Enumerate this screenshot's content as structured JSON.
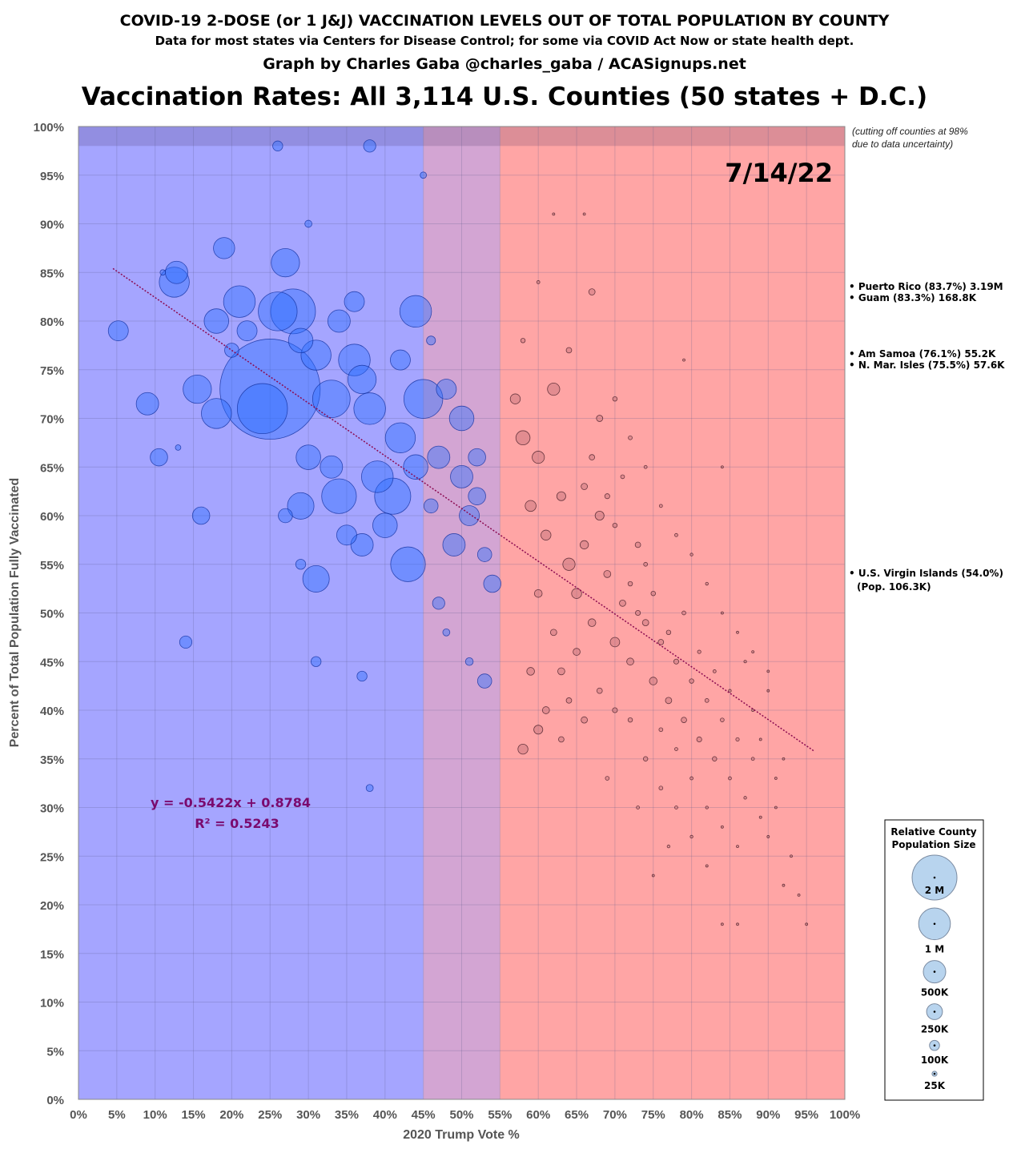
{
  "header": {
    "title": "COVID-19 2-DOSE (or 1 J&J) VACCINATION LEVELS OUT OF TOTAL POPULATION BY COUNTY",
    "subtitle": "Data for most states via Centers for Disease Control; for some via COVID Act Now or state health dept.",
    "credit": "Graph by Charles Gaba @charles_gaba / ACASignups.net",
    "main_title": "Vaccination Rates: All 3,114 U.S. Counties (50 states + D.C.)"
  },
  "chart_data": {
    "type": "scatter",
    "title": "Vaccination Rates: All 3,114 U.S. Counties (50 states + D.C.)",
    "date": "7/14/22",
    "xlabel": "2020 Trump Vote %",
    "ylabel": "Percent of Total Population Fully Vaccinated",
    "xlim": [
      0,
      100
    ],
    "ylim": [
      0,
      100
    ],
    "grid": true,
    "x_ticks": [
      "0%",
      "5%",
      "10%",
      "15%",
      "20%",
      "25%",
      "30%",
      "35%",
      "40%",
      "45%",
      "50%",
      "55%",
      "60%",
      "65%",
      "70%",
      "75%",
      "80%",
      "85%",
      "90%",
      "95%",
      "100%"
    ],
    "y_ticks": [
      "0%",
      "5%",
      "10%",
      "15%",
      "20%",
      "25%",
      "30%",
      "35%",
      "40%",
      "45%",
      "50%",
      "55%",
      "60%",
      "65%",
      "70%",
      "75%",
      "80%",
      "85%",
      "90%",
      "95%",
      "100%"
    ],
    "regions": [
      {
        "name": "blue",
        "from": 0,
        "to": 45,
        "color": "#a5a5ff"
      },
      {
        "name": "purple",
        "from": 45,
        "to": 55,
        "color": "#d3a5d3"
      },
      {
        "name": "red",
        "from": 55,
        "to": 100,
        "color": "#ffa5a5"
      }
    ],
    "cutoff_band": {
      "from": 98,
      "to": 100,
      "note_lines": [
        "(cutting off counties at 98%",
        "due to data uncertainty)"
      ]
    },
    "regression": {
      "slope": -0.5422,
      "intercept": 0.8784,
      "x_range": [
        4.5,
        96
      ],
      "equation": "y = -0.5422x + 0.8784",
      "r2": "R² = 0.5243",
      "color": "#8b0a50"
    },
    "point_fields": [
      "trump_vote_pct",
      "vaccinated_pct",
      "population_K"
    ],
    "points": [
      [
        5.2,
        79,
        400
      ],
      [
        9,
        71.5,
        500
      ],
      [
        10.5,
        66,
        300
      ],
      [
        12.5,
        84,
        900
      ],
      [
        12.8,
        85,
        500
      ],
      [
        15.5,
        73,
        800
      ],
      [
        18,
        70.5,
        900
      ],
      [
        19,
        87.5,
        450
      ],
      [
        21,
        82,
        1000
      ],
      [
        25,
        73,
        10000
      ],
      [
        24,
        71,
        2500
      ],
      [
        27,
        86,
        800
      ],
      [
        28,
        81,
        2000
      ],
      [
        26,
        81,
        1500
      ],
      [
        29,
        78,
        600
      ],
      [
        31,
        76.5,
        900
      ],
      [
        33,
        72,
        1400
      ],
      [
        30,
        66,
        600
      ],
      [
        34,
        62,
        1200
      ],
      [
        29,
        61,
        700
      ],
      [
        31,
        53.5,
        700
      ],
      [
        36,
        76,
        1000
      ],
      [
        37,
        74,
        800
      ],
      [
        38,
        71,
        1000
      ],
      [
        39,
        64,
        1000
      ],
      [
        41,
        62,
        1300
      ],
      [
        42,
        68,
        900
      ],
      [
        44,
        81,
        1000
      ],
      [
        43,
        55,
        1200
      ],
      [
        40,
        59,
        600
      ],
      [
        33,
        65,
        500
      ],
      [
        35,
        58,
        400
      ],
      [
        37,
        57,
        500
      ],
      [
        16,
        60,
        300
      ],
      [
        14,
        47,
        150
      ],
      [
        31,
        45,
        100
      ],
      [
        30,
        90,
        50
      ],
      [
        34,
        80,
        500
      ],
      [
        22,
        79,
        400
      ],
      [
        18,
        80,
        600
      ],
      [
        20,
        77,
        200
      ],
      [
        45,
        95,
        40
      ],
      [
        38,
        98,
        150
      ],
      [
        26,
        98,
        100
      ],
      [
        36,
        82,
        400
      ],
      [
        45,
        72,
        1500
      ],
      [
        42,
        76,
        400
      ],
      [
        47,
        66,
        500
      ],
      [
        44,
        65,
        600
      ],
      [
        37,
        43.5,
        100
      ],
      [
        38,
        32,
        50
      ],
      [
        13,
        67,
        30
      ],
      [
        11,
        85,
        30
      ],
      [
        29,
        55,
        100
      ],
      [
        27,
        60,
        200
      ],
      [
        46,
        78,
        80
      ],
      [
        50,
        70,
        600
      ],
      [
        48,
        73,
        400
      ],
      [
        52,
        66,
        300
      ],
      [
        51,
        60,
        400
      ],
      [
        49,
        57,
        500
      ],
      [
        53,
        56,
        200
      ],
      [
        54,
        53,
        300
      ],
      [
        46,
        61,
        200
      ],
      [
        47,
        51,
        150
      ],
      [
        48,
        48,
        50
      ],
      [
        51,
        45,
        60
      ],
      [
        53,
        43,
        200
      ],
      [
        50,
        64,
        500
      ],
      [
        52,
        62,
        300
      ],
      [
        57,
        72,
        100
      ],
      [
        58,
        68,
        200
      ],
      [
        60,
        66,
        150
      ],
      [
        62,
        73,
        150
      ],
      [
        59,
        61,
        120
      ],
      [
        61,
        58,
        100
      ],
      [
        63,
        62,
        80
      ],
      [
        64,
        55,
        150
      ],
      [
        66,
        57,
        70
      ],
      [
        65,
        52,
        100
      ],
      [
        67,
        49,
        60
      ],
      [
        68,
        60,
        80
      ],
      [
        69,
        54,
        50
      ],
      [
        70,
        47,
        90
      ],
      [
        71,
        51,
        40
      ],
      [
        72,
        45,
        50
      ],
      [
        73,
        57,
        30
      ],
      [
        74,
        49,
        40
      ],
      [
        75,
        43,
        60
      ],
      [
        76,
        47,
        30
      ],
      [
        77,
        41,
        40
      ],
      [
        78,
        45,
        25
      ],
      [
        79,
        39,
        30
      ],
      [
        80,
        43,
        20
      ],
      [
        81,
        37,
        25
      ],
      [
        82,
        41,
        15
      ],
      [
        83,
        35,
        20
      ],
      [
        84,
        39,
        15
      ],
      [
        85,
        33,
        10
      ],
      [
        86,
        37,
        12
      ],
      [
        87,
        31,
        8
      ],
      [
        88,
        35,
        10
      ],
      [
        89,
        29,
        6
      ],
      [
        90,
        27,
        5
      ],
      [
        91,
        33,
        5
      ],
      [
        92,
        22,
        3
      ],
      [
        93,
        25,
        4
      ],
      [
        95,
        18,
        3
      ],
      [
        60,
        52,
        60
      ],
      [
        62,
        48,
        40
      ],
      [
        63,
        44,
        50
      ],
      [
        64,
        41,
        30
      ],
      [
        66,
        63,
        40
      ],
      [
        67,
        66,
        30
      ],
      [
        69,
        62,
        25
      ],
      [
        70,
        59,
        20
      ],
      [
        71,
        64,
        15
      ],
      [
        72,
        53,
        20
      ],
      [
        73,
        50,
        25
      ],
      [
        74,
        55,
        15
      ],
      [
        75,
        52,
        20
      ],
      [
        76,
        38,
        15
      ],
      [
        77,
        48,
        20
      ],
      [
        78,
        36,
        10
      ],
      [
        79,
        50,
        15
      ],
      [
        80,
        33,
        10
      ],
      [
        81,
        46,
        12
      ],
      [
        82,
        30,
        8
      ],
      [
        83,
        44,
        10
      ],
      [
        84,
        28,
        6
      ],
      [
        85,
        42,
        8
      ],
      [
        86,
        26,
        5
      ],
      [
        87,
        45,
        7
      ],
      [
        88,
        40,
        6
      ],
      [
        89,
        37,
        5
      ],
      [
        90,
        42,
        4
      ],
      [
        91,
        30,
        4
      ],
      [
        92,
        35,
        3
      ],
      [
        94,
        21,
        2
      ],
      [
        58,
        36,
        100
      ],
      [
        60,
        38,
        80
      ],
      [
        59,
        44,
        60
      ],
      [
        61,
        40,
        50
      ],
      [
        63,
        37,
        30
      ],
      [
        65,
        46,
        50
      ],
      [
        68,
        42,
        30
      ],
      [
        70,
        40,
        25
      ],
      [
        72,
        39,
        20
      ],
      [
        74,
        35,
        20
      ],
      [
        76,
        32,
        15
      ],
      [
        78,
        30,
        10
      ],
      [
        80,
        27,
        8
      ],
      [
        82,
        24,
        6
      ],
      [
        84,
        18,
        5
      ],
      [
        86,
        18,
        4
      ],
      [
        75,
        23,
        3
      ],
      [
        67,
        83,
        40
      ],
      [
        60,
        84,
        10
      ],
      [
        62,
        91,
        5
      ],
      [
        66,
        91,
        5
      ],
      [
        58,
        78,
        20
      ],
      [
        64,
        77,
        30
      ],
      [
        68,
        70,
        40
      ],
      [
        70,
        72,
        20
      ],
      [
        72,
        68,
        15
      ],
      [
        74,
        65,
        10
      ],
      [
        76,
        61,
        10
      ],
      [
        78,
        58,
        10
      ],
      [
        80,
        56,
        8
      ],
      [
        82,
        53,
        8
      ],
      [
        84,
        50,
        6
      ],
      [
        86,
        48,
        5
      ],
      [
        88,
        46,
        4
      ],
      [
        90,
        44,
        4
      ],
      [
        79,
        76,
        5
      ],
      [
        84,
        65,
        5
      ],
      [
        66,
        39,
        40
      ],
      [
        69,
        33,
        15
      ],
      [
        73,
        30,
        10
      ],
      [
        77,
        26,
        8
      ]
    ],
    "territories": [
      {
        "label": "• Puerto Rico (83.7%) 3.19M"
      },
      {
        "label": "• Guam (83.3%) 168.8K"
      },
      {
        "label": "• Am Samoa (76.1%) 55.2K"
      },
      {
        "label": "• N. Mar. Isles (75.5%) 57.6K"
      },
      {
        "label": "• U.S. Virgin Islands (54.0%)"
      },
      {
        "label": "(Pop. 106.3K)"
      }
    ],
    "legend": {
      "title_lines": [
        "Relative County",
        "Population Size"
      ],
      "placement": "bottom-right",
      "sizes": [
        {
          "label": "2 M",
          "population_K": 2000
        },
        {
          "label": "1 M",
          "population_K": 1000
        },
        {
          "label": "500K",
          "population_K": 500
        },
        {
          "label": "250K",
          "population_K": 250
        },
        {
          "label": "100K",
          "population_K": 100
        },
        {
          "label": "25K",
          "population_K": 25
        }
      ]
    }
  }
}
